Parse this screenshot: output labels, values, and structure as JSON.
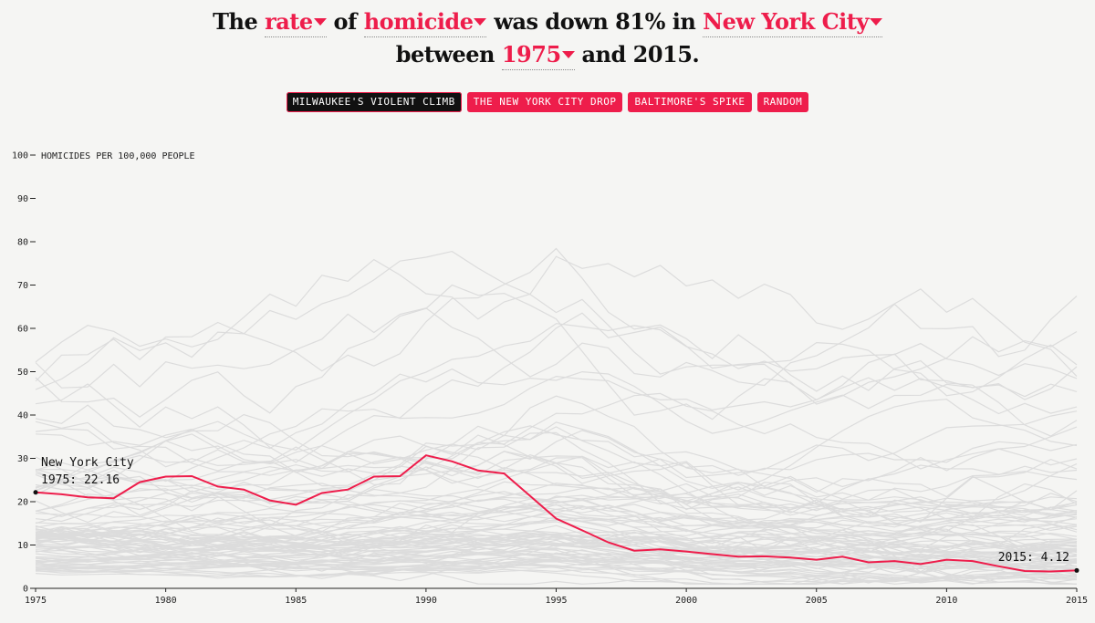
{
  "headline": {
    "w1": "The",
    "measure": "rate",
    "w2": "of",
    "crime": "homicide",
    "w3": "was down 81% in",
    "city": "New York City",
    "w4": "between",
    "start_year": "1975",
    "w5": "and 2015."
  },
  "buttons": [
    {
      "label": "MILWAUKEE'S VIOLENT CLIMB",
      "active": true
    },
    {
      "label": "THE NEW YORK CITY DROP",
      "active": false
    },
    {
      "label": "BALTIMORE'S SPIKE",
      "active": false
    },
    {
      "label": "RANDOM",
      "active": false
    }
  ],
  "colors": {
    "highlight": "#ee1d4b",
    "background_lines": "#dcdcdc",
    "axis": "#222222"
  },
  "chart_data": {
    "type": "line",
    "title": "",
    "ylabel": "HOMICIDES PER 100,000 PEOPLE",
    "xlabel": "",
    "xlim": [
      1975,
      2015
    ],
    "ylim": [
      0,
      100
    ],
    "x_ticks": [
      1975,
      1980,
      1985,
      1990,
      1995,
      2000,
      2005,
      2010,
      2015
    ],
    "y_ticks": [
      0,
      10,
      20,
      30,
      40,
      50,
      60,
      70,
      80,
      90,
      100
    ],
    "highlight": {
      "name": "New York City",
      "start_label": "1975: 22.16",
      "end_label": "2015: 4.12",
      "x": [
        1975,
        1976,
        1977,
        1978,
        1979,
        1980,
        1981,
        1982,
        1983,
        1984,
        1985,
        1986,
        1987,
        1988,
        1989,
        1990,
        1991,
        1992,
        1993,
        1994,
        1995,
        1996,
        1997,
        1998,
        1999,
        2000,
        2001,
        2002,
        2003,
        2004,
        2005,
        2006,
        2007,
        2008,
        2009,
        2010,
        2011,
        2012,
        2013,
        2014,
        2015
      ],
      "values": [
        22.16,
        21.7,
        21.0,
        20.8,
        24.5,
        25.8,
        25.9,
        23.5,
        22.8,
        20.3,
        19.3,
        22.0,
        22.8,
        25.8,
        25.9,
        30.7,
        29.3,
        27.2,
        26.5,
        21.3,
        16.1,
        13.4,
        10.6,
        8.7,
        9.0,
        8.5,
        7.9,
        7.3,
        7.4,
        7.1,
        6.6,
        7.3,
        6.0,
        6.3,
        5.6,
        6.6,
        6.3,
        5.1,
        4.0,
        3.9,
        4.12
      ]
    },
    "background_series_note": "approx. 100 other cities, unlabeled grey lines"
  }
}
